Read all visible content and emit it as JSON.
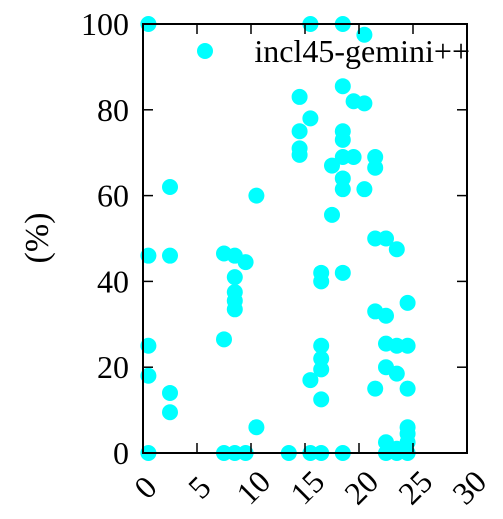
{
  "chart_data": {
    "type": "scatter",
    "title": "",
    "xlabel": "",
    "ylabel": "(%)",
    "xlim": [
      0,
      30
    ],
    "ylim": [
      0,
      100
    ],
    "xticks": [
      0,
      5,
      10,
      15,
      20,
      25,
      30
    ],
    "yticks": [
      0,
      20,
      40,
      60,
      80,
      100
    ],
    "grid": false,
    "legend_position": "top-right",
    "series": [
      {
        "name": "incl45-gemini++",
        "color": "#00ffff",
        "points": [
          [
            0.5,
            100
          ],
          [
            0.5,
            46
          ],
          [
            0.5,
            25
          ],
          [
            0.5,
            18
          ],
          [
            0.5,
            0
          ],
          [
            2.5,
            62
          ],
          [
            2.5,
            46
          ],
          [
            2.5,
            14
          ],
          [
            2.5,
            9.5
          ],
          [
            7.5,
            46.5
          ],
          [
            7.5,
            26.5
          ],
          [
            7.5,
            0
          ],
          [
            8.5,
            46
          ],
          [
            8.5,
            41
          ],
          [
            8.5,
            37.5
          ],
          [
            8.5,
            35.5
          ],
          [
            8.5,
            33.5
          ],
          [
            8.5,
            0
          ],
          [
            9.5,
            44.5
          ],
          [
            9.5,
            0
          ],
          [
            10.5,
            60
          ],
          [
            10.5,
            6
          ],
          [
            13.5,
            0
          ],
          [
            14.5,
            83
          ],
          [
            14.5,
            75
          ],
          [
            14.5,
            71
          ],
          [
            14.5,
            69.5
          ],
          [
            15.5,
            100
          ],
          [
            15.5,
            78
          ],
          [
            15.5,
            17
          ],
          [
            15.5,
            0
          ],
          [
            16.5,
            42
          ],
          [
            16.5,
            40
          ],
          [
            16.5,
            25
          ],
          [
            16.5,
            22
          ],
          [
            16.5,
            19.5
          ],
          [
            16.5,
            12.5
          ],
          [
            16.5,
            0
          ],
          [
            17.5,
            67
          ],
          [
            17.5,
            55.5
          ],
          [
            18.5,
            100
          ],
          [
            18.5,
            85.5
          ],
          [
            18.5,
            75
          ],
          [
            18.5,
            73
          ],
          [
            18.5,
            69
          ],
          [
            18.5,
            64
          ],
          [
            18.5,
            61.5
          ],
          [
            18.5,
            42
          ],
          [
            18.5,
            0
          ],
          [
            19.5,
            82
          ],
          [
            19.5,
            69
          ],
          [
            20.5,
            97.5
          ],
          [
            20.5,
            81.5
          ],
          [
            20.5,
            61.5
          ],
          [
            21.5,
            69
          ],
          [
            21.5,
            66.5
          ],
          [
            21.5,
            50
          ],
          [
            21.5,
            33
          ],
          [
            21.5,
            15
          ],
          [
            22.5,
            50
          ],
          [
            22.5,
            32
          ],
          [
            22.5,
            25.5
          ],
          [
            22.5,
            20
          ],
          [
            22.5,
            2.5
          ],
          [
            22.5,
            0
          ],
          [
            23.5,
            47.5
          ],
          [
            23.5,
            25
          ],
          [
            23.5,
            18.5
          ],
          [
            23.5,
            1
          ],
          [
            23.5,
            0
          ],
          [
            24.5,
            35
          ],
          [
            24.5,
            25
          ],
          [
            24.5,
            15
          ],
          [
            24.5,
            6
          ],
          [
            24.5,
            4.5
          ],
          [
            24.5,
            2.5
          ],
          [
            24.5,
            0
          ]
        ]
      }
    ]
  }
}
